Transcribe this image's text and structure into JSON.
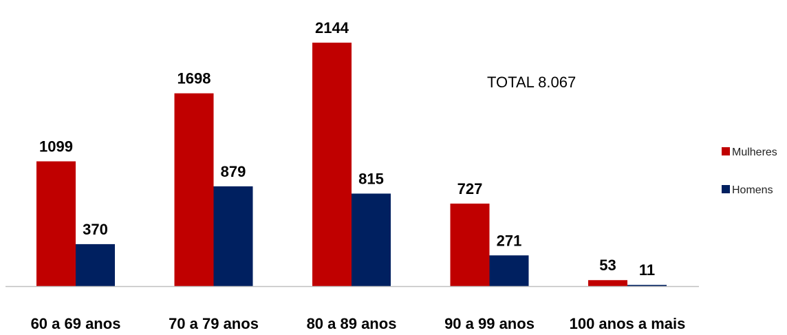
{
  "chart_data": {
    "type": "bar",
    "categories": [
      "60 a 69 anos",
      "70 a 79 anos",
      "80 a 89 anos",
      "90 a 99 anos",
      "100 anos a mais"
    ],
    "series": [
      {
        "name": "Mulheres",
        "values": [
          1099,
          1698,
          2144,
          727,
          53
        ],
        "color": "#c00000"
      },
      {
        "name": "Homens",
        "values": [
          370,
          879,
          815,
          271,
          11
        ],
        "color": "#002060"
      }
    ],
    "annotation": "TOTAL 8.067",
    "ylim": [
      0,
      2144
    ],
    "grid": false,
    "legend": "right"
  }
}
